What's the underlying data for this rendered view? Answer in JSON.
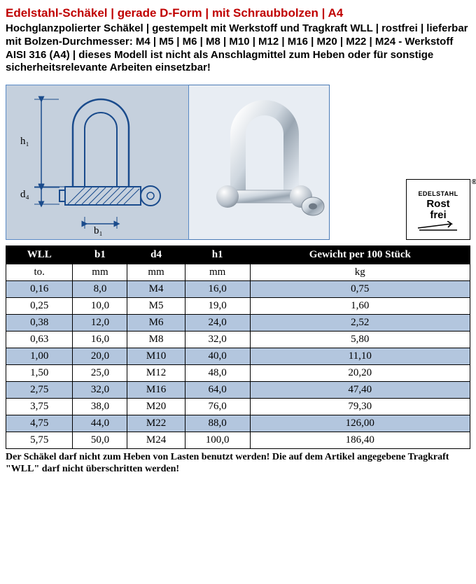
{
  "title": "Edelstahl-Schäkel | gerade D-Form | mit Schraubbolzen | A4",
  "description": "Hochglanzpolierter Schäkel | gestempelt mit Werkstoff und Tragkraft WLL | rostfrei | lieferbar mit Bolzen-Durchmesser: M4 | M5 | M6 | M8 | M10 | M12 | M16 | M20 | M22 | M24 - Werkstoff AISI 316 (A4) | dieses Modell ist nicht als Anschlagmittel zum Heben oder für sonstige sicherheitsrelevante Arbeiten einsetzbar!",
  "diagram": {
    "label_h1": "h₁",
    "label_d4": "d₄",
    "label_b1": "b₁"
  },
  "badge": {
    "top": "EDELSTAHL",
    "line1": "Rost",
    "line2": "frei",
    "reg": "®"
  },
  "table": {
    "columns": [
      "WLL",
      "b1",
      "d4",
      "h1",
      "Gewicht per 100 Stück"
    ],
    "units": [
      "to.",
      "mm",
      "mm",
      "mm",
      "kg"
    ],
    "rows": [
      [
        "0,16",
        "8,0",
        "M4",
        "16,0",
        "0,75"
      ],
      [
        "0,25",
        "10,0",
        "M5",
        "19,0",
        "1,60"
      ],
      [
        "0,38",
        "12,0",
        "M6",
        "24,0",
        "2,52"
      ],
      [
        "0,63",
        "16,0",
        "M8",
        "32,0",
        "5,80"
      ],
      [
        "1,00",
        "20,0",
        "M10",
        "40,0",
        "11,10"
      ],
      [
        "1,50",
        "25,0",
        "M12",
        "48,0",
        "20,20"
      ],
      [
        "2,75",
        "32,0",
        "M16",
        "64,0",
        "47,40"
      ],
      [
        "3,75",
        "38,0",
        "M20",
        "76,0",
        "79,30"
      ],
      [
        "4,75",
        "44,0",
        "M22",
        "88,0",
        "126,00"
      ],
      [
        "5,75",
        "50,0",
        "M24",
        "100,0",
        "186,40"
      ]
    ],
    "header_bg": "#000000",
    "header_fg": "#ffffff",
    "row_alt_bg": "#b3c6de",
    "row_plain_bg": "#ffffff",
    "border_color": "#000000"
  },
  "footnote": "Der Schäkel darf nicht zum Heben von Lasten benutzt werden! Die auf dem Artikel angegebene Tragkraft \"WLL\" darf nicht überschritten werden!",
  "colors": {
    "title": "#c00000",
    "diagram_bg": "#c5d0dd",
    "diagram_border": "#5a8ac6",
    "photo_bg": "#e8edf3"
  }
}
